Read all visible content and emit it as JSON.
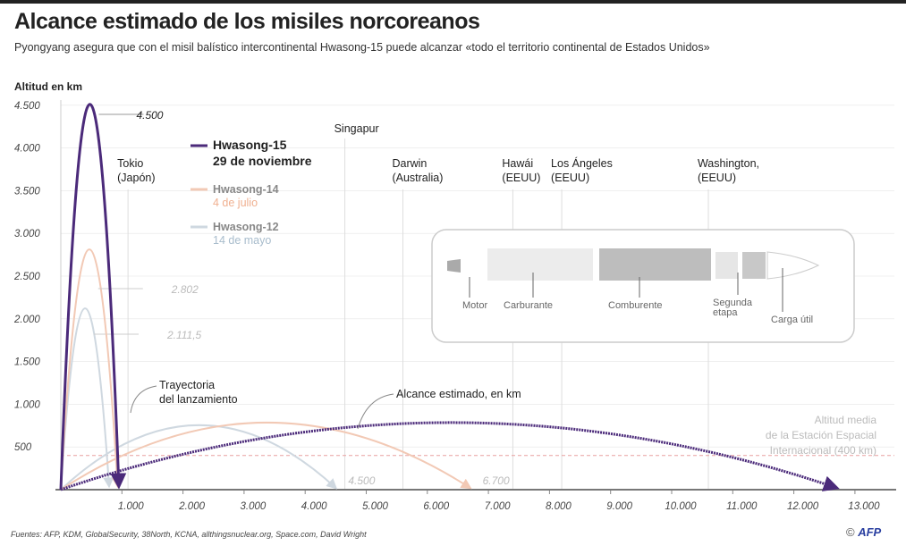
{
  "title": "Alcance estimado de los misiles norcoreanos",
  "subtitle": "Pyongyang asegura que con el misil balístico intercontinental Hwasong-15 puede alcanzar «todo el territorio continental de Estados Unidos»",
  "footer": "Fuentes: AFP, KDM, GlobalSecurity, 38North, KCNA, allthingsnuclear.org, Space.com, David Wright",
  "credit": "AFP",
  "colors": {
    "h15": "#4b2a7a",
    "h14": "#f2c9b5",
    "h12": "#cfd8e0",
    "iss": "#e8a0a0",
    "grid": "#e6e6e6"
  },
  "chart_data": {
    "type": "line",
    "title": "Alcance estimado de los misiles norcoreanos",
    "ylabel": "Altitud en km",
    "xlabel": "",
    "ylim": [
      0,
      4500
    ],
    "xlim": [
      0,
      13000
    ],
    "yticks": [
      "4.500",
      "4.000",
      "3.500",
      "3.000",
      "2.500",
      "2.000",
      "1.500",
      "1.000",
      "500"
    ],
    "ytick_values": [
      4500,
      4000,
      3500,
      3000,
      2500,
      2000,
      1500,
      1000,
      500
    ],
    "xticks": [
      "1.000",
      "2.000",
      "3.000",
      "4.000",
      "5.000",
      "6.000",
      "7.000",
      "8.000",
      "9.000",
      "10.000",
      "11.000",
      "12.000",
      "13.000"
    ],
    "xtick_values": [
      1000,
      2000,
      3000,
      4000,
      5000,
      6000,
      7000,
      8000,
      9000,
      10000,
      11000,
      12000,
      13000
    ],
    "series": [
      {
        "key": "h15",
        "name": "Hwasong-15",
        "date": "29 de noviembre",
        "apogee": 4500,
        "apogee_label": "4.500",
        "launch_range": 950,
        "range": 12700,
        "range_peak": 780
      },
      {
        "key": "h14",
        "name": "Hwasong-14",
        "date": "4 de julio",
        "apogee": 2802,
        "apogee_label": "2.802",
        "launch_range": 930,
        "range": 6700,
        "range_label": "6.700",
        "range_peak": 780
      },
      {
        "key": "h12",
        "name": "Hwasong-12",
        "date": "14 de mayo",
        "apogee": 2111.5,
        "apogee_label": "2.111,5",
        "launch_range": 790,
        "range": 4500,
        "range_label": "4.500",
        "range_peak": 750
      }
    ],
    "cities": [
      {
        "name": "Tokio",
        "sub": "(Japón)",
        "km": 1100
      },
      {
        "name": "Singapur",
        "sub": "",
        "km": 4650
      },
      {
        "name": "Darwin",
        "sub": "(Australia)",
        "km": 5600
      },
      {
        "name": "Hawái",
        "sub": "(EEUU)",
        "km": 7400
      },
      {
        "name": "Los Ángeles",
        "sub": "(EEUU)",
        "km": 8200
      },
      {
        "name": "Washington,",
        "sub": "(EEUU)",
        "km": 10600
      }
    ],
    "iss": {
      "altitude": 400,
      "label": [
        "Altitud media",
        "de la Estación Espacial",
        "Internacional (400 km)"
      ]
    },
    "annotations": {
      "launch": [
        "Trayectoria",
        "del lanzamiento"
      ],
      "range": "Alcance estimado, en km"
    }
  },
  "rocket": {
    "parts": [
      "Motor",
      "Carburante",
      "Comburente",
      "Segunda",
      "etapa",
      "Carga útil"
    ]
  }
}
